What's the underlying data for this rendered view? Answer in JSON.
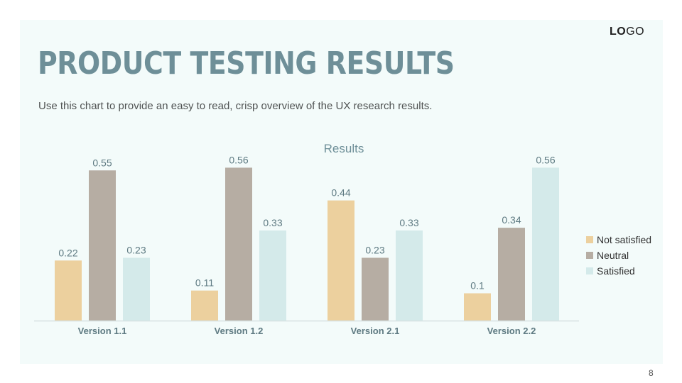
{
  "header": {
    "logo_bold": "LO",
    "logo_light": "GO",
    "title": "PRODUCT TESTING RESULTS",
    "subtitle": "Use this chart to provide an easy to read, crisp overview of the UX research results."
  },
  "footer": {
    "page_number": "8"
  },
  "colors": {
    "panel_background": "#f3fbfa",
    "title": "#6e8f98",
    "not_satisfied": "#ecd09e",
    "neutral": "#b6ada3",
    "satisfied": "#d4eaea",
    "axis": "#d6e2e2"
  },
  "chart_data": {
    "type": "bar",
    "title": "Results",
    "xlabel": "",
    "ylabel": "",
    "ylim": [
      0,
      0.6
    ],
    "grid": false,
    "legend_position": "right",
    "categories": [
      "Version 1.1",
      "Version 1.2",
      "Version 2.1",
      "Version 2.2"
    ],
    "series": [
      {
        "name": "Not satisfied",
        "color": "#ecd09e",
        "values": [
          0.22,
          0.11,
          0.44,
          0.1
        ],
        "labels": [
          "0.22",
          "0.11",
          "0.44",
          "0.1"
        ]
      },
      {
        "name": "Neutral",
        "color": "#b6ada3",
        "values": [
          0.55,
          0.56,
          0.23,
          0.34
        ],
        "labels": [
          "0.55",
          "0.56",
          "0.23",
          "0.34"
        ]
      },
      {
        "name": "Satisfied",
        "color": "#d4eaea",
        "values": [
          0.23,
          0.33,
          0.33,
          0.56
        ],
        "labels": [
          "0.23",
          "0.33",
          "0.33",
          "0.56"
        ]
      }
    ]
  }
}
